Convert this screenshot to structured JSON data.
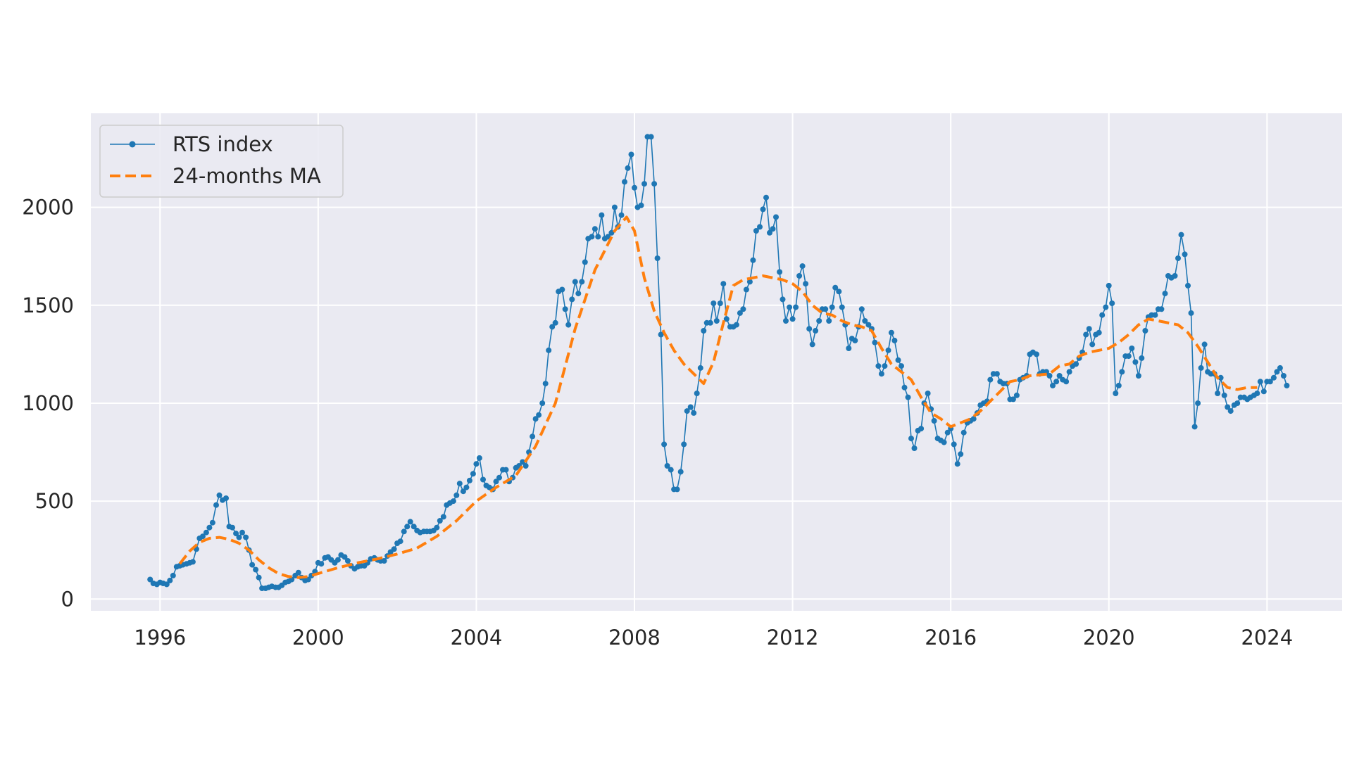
{
  "chart_data": {
    "type": "line",
    "title": "",
    "xlabel": "",
    "ylabel": "",
    "xlim": [
      1994.25,
      2025.9
    ],
    "ylim": [
      -60,
      2480
    ],
    "x_ticks": [
      1996,
      2000,
      2004,
      2008,
      2012,
      2016,
      2020,
      2024
    ],
    "y_ticks": [
      0,
      500,
      1000,
      1500,
      2000
    ],
    "grid": true,
    "legend_position": "top-left",
    "background": "#EAEAF2",
    "series": [
      {
        "name": "RTS index",
        "style": "line-with-markers",
        "color": "#1F77B4",
        "x": [
          1995.75,
          1995.83,
          1995.92,
          1996.0,
          1996.08,
          1996.17,
          1996.25,
          1996.33,
          1996.42,
          1996.5,
          1996.58,
          1996.67,
          1996.75,
          1996.83,
          1996.92,
          1997.0,
          1997.08,
          1997.17,
          1997.25,
          1997.33,
          1997.42,
          1997.5,
          1997.58,
          1997.67,
          1997.75,
          1997.83,
          1997.92,
          1998.0,
          1998.08,
          1998.17,
          1998.25,
          1998.33,
          1998.42,
          1998.5,
          1998.58,
          1998.67,
          1998.75,
          1998.83,
          1998.92,
          1999.0,
          1999.08,
          1999.17,
          1999.25,
          1999.33,
          1999.42,
          1999.5,
          1999.58,
          1999.67,
          1999.75,
          1999.83,
          1999.92,
          2000.0,
          2000.08,
          2000.17,
          2000.25,
          2000.33,
          2000.42,
          2000.5,
          2000.58,
          2000.67,
          2000.75,
          2000.83,
          2000.92,
          2001.0,
          2001.08,
          2001.17,
          2001.25,
          2001.33,
          2001.42,
          2001.5,
          2001.58,
          2001.67,
          2001.75,
          2001.83,
          2001.92,
          2002.0,
          2002.08,
          2002.17,
          2002.25,
          2002.33,
          2002.42,
          2002.5,
          2002.58,
          2002.67,
          2002.75,
          2002.83,
          2002.92,
          2003.0,
          2003.08,
          2003.17,
          2003.25,
          2003.33,
          2003.42,
          2003.5,
          2003.58,
          2003.67,
          2003.75,
          2003.83,
          2003.92,
          2004.0,
          2004.08,
          2004.17,
          2004.25,
          2004.33,
          2004.42,
          2004.5,
          2004.58,
          2004.67,
          2004.75,
          2004.83,
          2004.92,
          2005.0,
          2005.08,
          2005.17,
          2005.25,
          2005.33,
          2005.42,
          2005.5,
          2005.58,
          2005.67,
          2005.75,
          2005.83,
          2005.92,
          2006.0,
          2006.08,
          2006.17,
          2006.25,
          2006.33,
          2006.42,
          2006.5,
          2006.58,
          2006.67,
          2006.75,
          2006.83,
          2006.92,
          2007.0,
          2007.08,
          2007.17,
          2007.25,
          2007.33,
          2007.42,
          2007.5,
          2007.58,
          2007.67,
          2007.75,
          2007.83,
          2007.92,
          2008.0,
          2008.08,
          2008.17,
          2008.25,
          2008.33,
          2008.42,
          2008.5,
          2008.58,
          2008.67,
          2008.75,
          2008.83,
          2008.92,
          2009.0,
          2009.08,
          2009.17,
          2009.25,
          2009.33,
          2009.42,
          2009.5,
          2009.58,
          2009.67,
          2009.75,
          2009.83,
          2009.92,
          2010.0,
          2010.08,
          2010.17,
          2010.25,
          2010.33,
          2010.42,
          2010.5,
          2010.58,
          2010.67,
          2010.75,
          2010.83,
          2010.92,
          2011.0,
          2011.08,
          2011.17,
          2011.25,
          2011.33,
          2011.42,
          2011.5,
          2011.58,
          2011.67,
          2011.75,
          2011.83,
          2011.92,
          2012.0,
          2012.08,
          2012.17,
          2012.25,
          2012.33,
          2012.42,
          2012.5,
          2012.58,
          2012.67,
          2012.75,
          2012.83,
          2012.92,
          2013.0,
          2013.08,
          2013.17,
          2013.25,
          2013.33,
          2013.42,
          2013.5,
          2013.58,
          2013.67,
          2013.75,
          2013.83,
          2013.92,
          2014.0,
          2014.08,
          2014.17,
          2014.25,
          2014.33,
          2014.42,
          2014.5,
          2014.58,
          2014.67,
          2014.75,
          2014.83,
          2014.92,
          2015.0,
          2015.08,
          2015.17,
          2015.25,
          2015.33,
          2015.42,
          2015.5,
          2015.58,
          2015.67,
          2015.75,
          2015.83,
          2015.92,
          2016.0,
          2016.08,
          2016.17,
          2016.25,
          2016.33,
          2016.42,
          2016.5,
          2016.58,
          2016.67,
          2016.75,
          2016.83,
          2016.92,
          2017.0,
          2017.08,
          2017.17,
          2017.25,
          2017.33,
          2017.42,
          2017.5,
          2017.58,
          2017.67,
          2017.75,
          2017.83,
          2017.92,
          2018.0,
          2018.08,
          2018.17,
          2018.25,
          2018.33,
          2018.42,
          2018.5,
          2018.58,
          2018.67,
          2018.75,
          2018.83,
          2018.92,
          2019.0,
          2019.08,
          2019.17,
          2019.25,
          2019.33,
          2019.42,
          2019.5,
          2019.58,
          2019.67,
          2019.75,
          2019.83,
          2019.92,
          2020.0,
          2020.08,
          2020.17,
          2020.25,
          2020.33,
          2020.42,
          2020.5,
          2020.58,
          2020.67,
          2020.75,
          2020.83,
          2020.92,
          2021.0,
          2021.08,
          2021.17,
          2021.25,
          2021.33,
          2021.42,
          2021.5,
          2021.58,
          2021.67,
          2021.75,
          2021.83,
          2021.92,
          2022.0,
          2022.08,
          2022.17,
          2022.25,
          2022.33,
          2022.42,
          2022.5,
          2022.58,
          2022.67,
          2022.75,
          2022.83,
          2022.92,
          2023.0,
          2023.08,
          2023.17,
          2023.25,
          2023.33,
          2023.42,
          2023.5,
          2023.58,
          2023.67,
          2023.75,
          2023.83,
          2023.92,
          2024.0,
          2024.08,
          2024.17,
          2024.25,
          2024.33,
          2024.42,
          2024.5
        ],
        "values": [
          100,
          80,
          75,
          85,
          80,
          75,
          95,
          120,
          165,
          170,
          175,
          180,
          185,
          190,
          255,
          310,
          320,
          340,
          365,
          390,
          480,
          530,
          505,
          515,
          370,
          365,
          335,
          315,
          340,
          315,
          250,
          175,
          150,
          110,
          55,
          55,
          60,
          65,
          60,
          60,
          70,
          85,
          90,
          100,
          120,
          135,
          110,
          95,
          100,
          120,
          140,
          185,
          180,
          210,
          215,
          200,
          185,
          200,
          225,
          215,
          195,
          170,
          155,
          165,
          170,
          170,
          185,
          205,
          210,
          200,
          195,
          195,
          220,
          240,
          255,
          285,
          295,
          345,
          370,
          395,
          370,
          350,
          340,
          345,
          345,
          345,
          350,
          365,
          400,
          420,
          480,
          490,
          500,
          530,
          590,
          550,
          570,
          605,
          640,
          690,
          720,
          610,
          580,
          570,
          560,
          600,
          620,
          660,
          660,
          600,
          620,
          670,
          680,
          700,
          680,
          750,
          830,
          920,
          940,
          1000,
          1100,
          1270,
          1390,
          1410,
          1570,
          1580,
          1480,
          1400,
          1530,
          1620,
          1560,
          1620,
          1720,
          1840,
          1850,
          1890,
          1850,
          1960,
          1840,
          1850,
          1870,
          2000,
          1900,
          1960,
          2130,
          2200,
          2270,
          2100,
          2000,
          2010,
          2120,
          2360,
          2360,
          2120,
          1740,
          1350,
          790,
          680,
          660,
          560,
          560,
          650,
          790,
          960,
          980,
          950,
          1050,
          1180,
          1370,
          1410,
          1410,
          1510,
          1420,
          1510,
          1610,
          1430,
          1390,
          1390,
          1400,
          1460,
          1480,
          1580,
          1620,
          1730,
          1880,
          1900,
          1990,
          2050,
          1870,
          1890,
          1950,
          1670,
          1530,
          1420,
          1490,
          1430,
          1490,
          1650,
          1700,
          1610,
          1380,
          1300,
          1370,
          1420,
          1480,
          1480,
          1420,
          1490,
          1590,
          1570,
          1490,
          1400,
          1280,
          1330,
          1320,
          1390,
          1480,
          1420,
          1400,
          1380,
          1310,
          1190,
          1150,
          1190,
          1270,
          1360,
          1320,
          1220,
          1190,
          1080,
          1030,
          820,
          770,
          860,
          870,
          1000,
          1050,
          970,
          910,
          820,
          810,
          800,
          850,
          870,
          790,
          690,
          740,
          850,
          900,
          910,
          920,
          950,
          990,
          1000,
          1010,
          1120,
          1150,
          1150,
          1110,
          1100,
          1100,
          1020,
          1020,
          1040,
          1120,
          1130,
          1140,
          1250,
          1260,
          1250,
          1150,
          1160,
          1160,
          1140,
          1090,
          1110,
          1140,
          1120,
          1110,
          1160,
          1190,
          1200,
          1230,
          1260,
          1350,
          1380,
          1300,
          1350,
          1360,
          1450,
          1490,
          1600,
          1510,
          1050,
          1090,
          1160,
          1240,
          1240,
          1280,
          1210,
          1140,
          1230,
          1370,
          1440,
          1450,
          1450,
          1480,
          1480,
          1560,
          1650,
          1640,
          1650,
          1740,
          1860,
          1760,
          1600,
          1460,
          880,
          1000,
          1180,
          1300,
          1160,
          1150,
          1150,
          1050,
          1130,
          1040,
          980,
          960,
          990,
          1000,
          1030,
          1030,
          1020,
          1030,
          1040,
          1050,
          1110,
          1060,
          1110,
          1110,
          1130,
          1160,
          1180,
          1140,
          1090
        ]
      },
      {
        "name": "24-months MA",
        "style": "dashed",
        "color": "#FF7F0E",
        "x": [
          1996.5,
          1996.75,
          1997.0,
          1997.25,
          1997.5,
          1997.75,
          1998.0,
          1998.25,
          1998.5,
          1998.75,
          1999.0,
          1999.25,
          1999.5,
          1999.75,
          2000.0,
          2000.5,
          2001.0,
          2001.5,
          2002.0,
          2002.5,
          2003.0,
          2003.5,
          2004.0,
          2004.5,
          2005.0,
          2005.5,
          2006.0,
          2006.5,
          2007.0,
          2007.5,
          2007.8,
          2008.0,
          2008.25,
          2008.5,
          2008.75,
          2009.0,
          2009.25,
          2009.5,
          2009.75,
          2010.0,
          2010.25,
          2010.5,
          2010.75,
          2011.0,
          2011.25,
          2011.5,
          2011.75,
          2012.0,
          2012.25,
          2012.5,
          2012.75,
          2013.0,
          2013.25,
          2013.5,
          2013.75,
          2014.0,
          2014.25,
          2014.5,
          2014.75,
          2015.0,
          2015.25,
          2015.5,
          2015.75,
          2016.0,
          2016.25,
          2016.5,
          2016.75,
          2017.0,
          2017.25,
          2017.5,
          2017.75,
          2018.0,
          2018.25,
          2018.5,
          2018.75,
          2019.0,
          2019.25,
          2019.5,
          2019.75,
          2020.0,
          2020.25,
          2020.5,
          2020.75,
          2021.0,
          2021.25,
          2021.5,
          2021.75,
          2022.0,
          2022.25,
          2022.5,
          2022.75,
          2023.0,
          2023.25,
          2023.5,
          2023.75
        ],
        "values": [
          180,
          245,
          290,
          310,
          315,
          305,
          285,
          250,
          200,
          160,
          130,
          115,
          110,
          115,
          130,
          160,
          185,
          205,
          230,
          260,
          320,
          400,
          500,
          570,
          630,
          780,
          1000,
          1380,
          1680,
          1880,
          1950,
          1880,
          1640,
          1470,
          1360,
          1270,
          1200,
          1150,
          1100,
          1210,
          1410,
          1600,
          1630,
          1640,
          1650,
          1640,
          1630,
          1610,
          1570,
          1500,
          1460,
          1450,
          1420,
          1400,
          1390,
          1370,
          1280,
          1200,
          1160,
          1120,
          1030,
          950,
          920,
          880,
          900,
          920,
          960,
          1010,
          1060,
          1110,
          1120,
          1140,
          1145,
          1150,
          1190,
          1200,
          1240,
          1260,
          1270,
          1280,
          1310,
          1350,
          1400,
          1430,
          1420,
          1410,
          1400,
          1360,
          1290,
          1210,
          1130,
          1080,
          1070,
          1080,
          1080
        ]
      }
    ]
  }
}
